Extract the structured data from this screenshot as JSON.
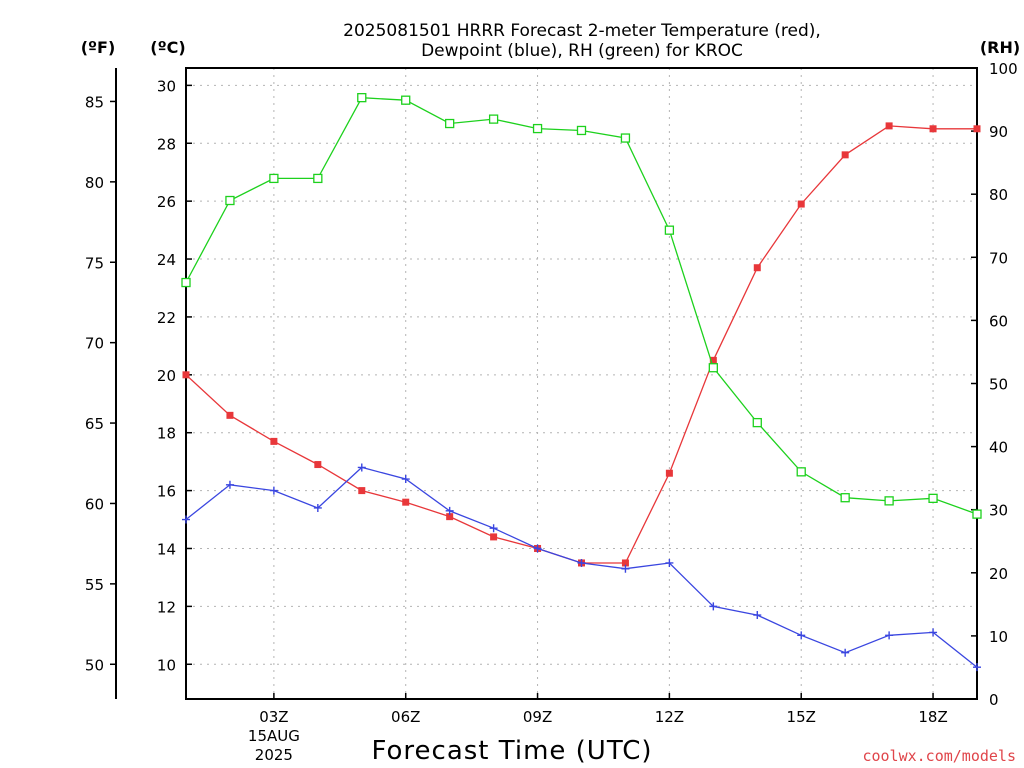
{
  "chart_data": {
    "type": "line",
    "title": [
      "2025081501 HRRR Forecast 2-meter Temperature (red),",
      "Dewpoint (blue), RH (green) for KROC"
    ],
    "xlabel": "Forecast Time (UTC)",
    "y_units": {
      "fahrenheit": "(ºF)",
      "celsius": "(ºC)",
      "rh": "(RH)"
    },
    "x": [
      1,
      2,
      3,
      4,
      5,
      6,
      7,
      8,
      9,
      10,
      11,
      12,
      13,
      14,
      15,
      16,
      17,
      18,
      19
    ],
    "x_ticks": [
      {
        "x": 3,
        "label": [
          "03Z",
          "15AUG",
          "2025"
        ]
      },
      {
        "x": 6,
        "label": [
          "06Z"
        ]
      },
      {
        "x": 9,
        "label": [
          "09Z"
        ]
      },
      {
        "x": 12,
        "label": [
          "12Z"
        ]
      },
      {
        "x": 15,
        "label": [
          "15Z"
        ]
      },
      {
        "x": 18,
        "label": [
          "18Z"
        ]
      }
    ],
    "xlim": [
      1,
      19
    ],
    "celsius_axis": {
      "ylim": [
        8.8,
        30.6
      ],
      "ticks": [
        10,
        12,
        14,
        16,
        18,
        20,
        22,
        24,
        26,
        28,
        30
      ]
    },
    "fahrenheit_axis": {
      "ticks": [
        50,
        55,
        60,
        65,
        70,
        75,
        80,
        85
      ]
    },
    "rh_axis": {
      "ylim": [
        0,
        100
      ],
      "ticks": [
        0,
        10,
        20,
        30,
        40,
        50,
        60,
        70,
        80,
        90,
        100
      ]
    },
    "series": [
      {
        "name": "Temperature",
        "axis": "celsius",
        "color": "#e8373a",
        "marker": "filled-square",
        "values": [
          20.0,
          18.6,
          17.7,
          16.9,
          16.0,
          15.6,
          15.1,
          14.4,
          14.0,
          13.5,
          13.5,
          16.6,
          20.5,
          23.7,
          25.9,
          27.6,
          28.6,
          28.5,
          28.5
        ]
      },
      {
        "name": "Dewpoint",
        "axis": "celsius",
        "color": "#3a46e0",
        "marker": "plus",
        "values": [
          15.0,
          16.2,
          16.0,
          15.4,
          16.8,
          16.4,
          15.3,
          14.7,
          14.0,
          13.5,
          13.3,
          13.5,
          12.0,
          11.7,
          11.0,
          10.4,
          11.0,
          11.1,
          9.9
        ]
      },
      {
        "name": "RH",
        "axis": "rh",
        "color": "#1dd11d",
        "marker": "open-square",
        "values": [
          66.0,
          79.0,
          82.5,
          82.5,
          95.3,
          94.9,
          91.2,
          91.9,
          90.4,
          90.1,
          88.9,
          74.3,
          52.5,
          43.8,
          36.0,
          31.9,
          31.4,
          31.8,
          29.3
        ]
      }
    ],
    "grid": true,
    "credit": "coolwx.com/models"
  }
}
